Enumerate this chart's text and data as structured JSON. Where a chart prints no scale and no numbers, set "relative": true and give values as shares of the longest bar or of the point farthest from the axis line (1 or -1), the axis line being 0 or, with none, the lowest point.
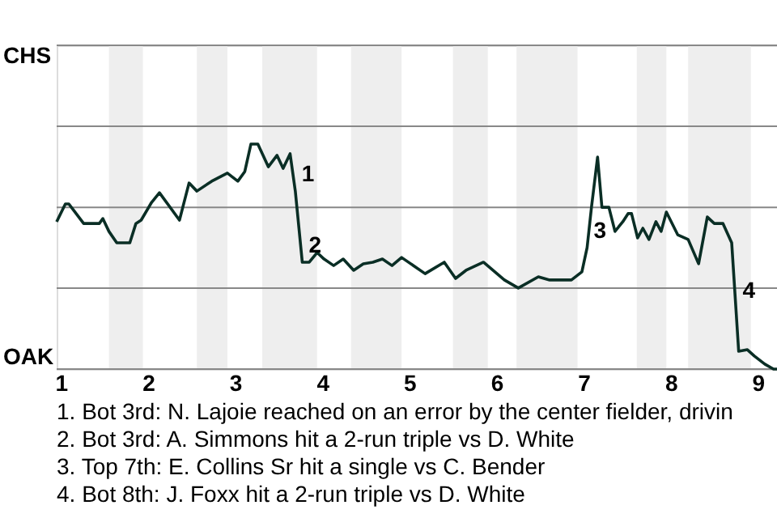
{
  "chart_data": {
    "type": "line",
    "relative": true,
    "x": [
      0.95,
      1.05,
      1.09,
      1.26,
      1.44,
      1.48,
      1.55,
      1.64,
      1.79,
      1.86,
      1.92,
      2.04,
      2.13,
      2.36,
      2.47,
      2.56,
      2.73,
      2.91,
      3.03,
      3.11,
      3.18,
      3.26,
      3.38,
      3.48,
      3.55,
      3.63,
      3.69,
      3.77,
      3.85,
      3.94,
      4.02,
      4.13,
      4.24,
      4.36,
      4.47,
      4.58,
      4.69,
      4.8,
      4.91,
      5.18,
      5.4,
      5.53,
      5.65,
      5.85,
      6.09,
      6.25,
      6.48,
      6.61,
      6.86,
      6.98,
      7.04,
      7.09,
      7.16,
      7.21,
      7.29,
      7.36,
      7.45,
      7.51,
      7.55,
      7.62,
      7.68,
      7.75,
      7.83,
      7.89,
      7.95,
      8.08,
      8.2,
      8.32,
      8.42,
      8.5,
      8.6,
      8.7,
      8.78,
      8.88,
      8.96,
      9.08,
      9.18,
      9.22
    ],
    "series": [
      {
        "color": "#0a2e25",
        "values": [
          0.655,
          0.734,
          0.734,
          0.647,
          0.647,
          0.669,
          0.612,
          0.561,
          0.561,
          0.647,
          0.662,
          0.741,
          0.784,
          0.662,
          0.827,
          0.791,
          0.835,
          0.871,
          0.835,
          0.878,
          1,
          1,
          0.899,
          0.95,
          0.892,
          0.957,
          0.791,
          0.475,
          0.475,
          0.518,
          0.489,
          0.46,
          0.489,
          0.439,
          0.468,
          0.475,
          0.489,
          0.46,
          0.496,
          0.424,
          0.475,
          0.403,
          0.439,
          0.475,
          0.396,
          0.36,
          0.41,
          0.396,
          0.396,
          0.432,
          0.54,
          0.719,
          0.942,
          0.719,
          0.719,
          0.612,
          0.655,
          0.691,
          0.691,
          0.583,
          0.626,
          0.576,
          0.655,
          0.612,
          0.698,
          0.597,
          0.576,
          0.468,
          0.676,
          0.647,
          0.647,
          0.561,
          0.079,
          0.086,
          0.058,
          0.022,
          0,
          0
        ]
      }
    ],
    "xlim": [
      0.95,
      9.22
    ],
    "xticks": [
      1,
      2,
      3,
      4,
      5,
      6,
      7,
      8,
      9
    ],
    "grid": false,
    "marker": "none",
    "line_style": "solid",
    "ref_lines": [
      {
        "axis": "y",
        "value": 0,
        "label": "OAK",
        "color": "#888888"
      },
      {
        "axis": "y",
        "value": 0.36,
        "color": "#888888"
      },
      {
        "axis": "y",
        "value": 0.719,
        "color": "#888888"
      },
      {
        "axis": "y",
        "value": 1.079,
        "color": "#888888"
      },
      {
        "axis": "y",
        "value": 1.439,
        "label": "CHS",
        "color": "#888888"
      }
    ],
    "bands": [
      {
        "axis": "x",
        "from": 1.55,
        "to": 1.94,
        "color": "#eeeeee"
      },
      {
        "axis": "x",
        "from": 2.56,
        "to": 2.91,
        "color": "#eeeeee"
      },
      {
        "axis": "x",
        "from": 3.31,
        "to": 3.94,
        "color": "#eeeeee"
      },
      {
        "axis": "x",
        "from": 4.33,
        "to": 4.91,
        "color": "#eeeeee"
      },
      {
        "axis": "x",
        "from": 5.5,
        "to": 5.9,
        "color": "#eeeeee"
      },
      {
        "axis": "x",
        "from": 6.23,
        "to": 6.93,
        "color": "#eeeeee"
      },
      {
        "axis": "x",
        "from": 7.61,
        "to": 7.95,
        "color": "#eeeeee"
      },
      {
        "axis": "x",
        "from": 8.2,
        "to": 8.92,
        "color": "#eeeeee"
      }
    ],
    "annotations": [
      {
        "text": "1",
        "x": 3.69,
        "y": 0.791
      },
      {
        "text": "2",
        "x": 3.77,
        "y": 0.475
      },
      {
        "text": "3",
        "x": 7.04,
        "y": 0.54
      },
      {
        "text": "4",
        "x": 8.75,
        "y": 0.273
      },
      "1. Bot 3rd: N. Lajoie reached on an error by the center fielder, drivin",
      "2. Bot 3rd: A. Simmons hit a 2-run triple vs D. White",
      "3. Top 7th: E. Collins Sr hit a single vs C. Bender",
      "4. Bot 8th: J. Foxx hit a 2-run triple vs D. White"
    ]
  }
}
